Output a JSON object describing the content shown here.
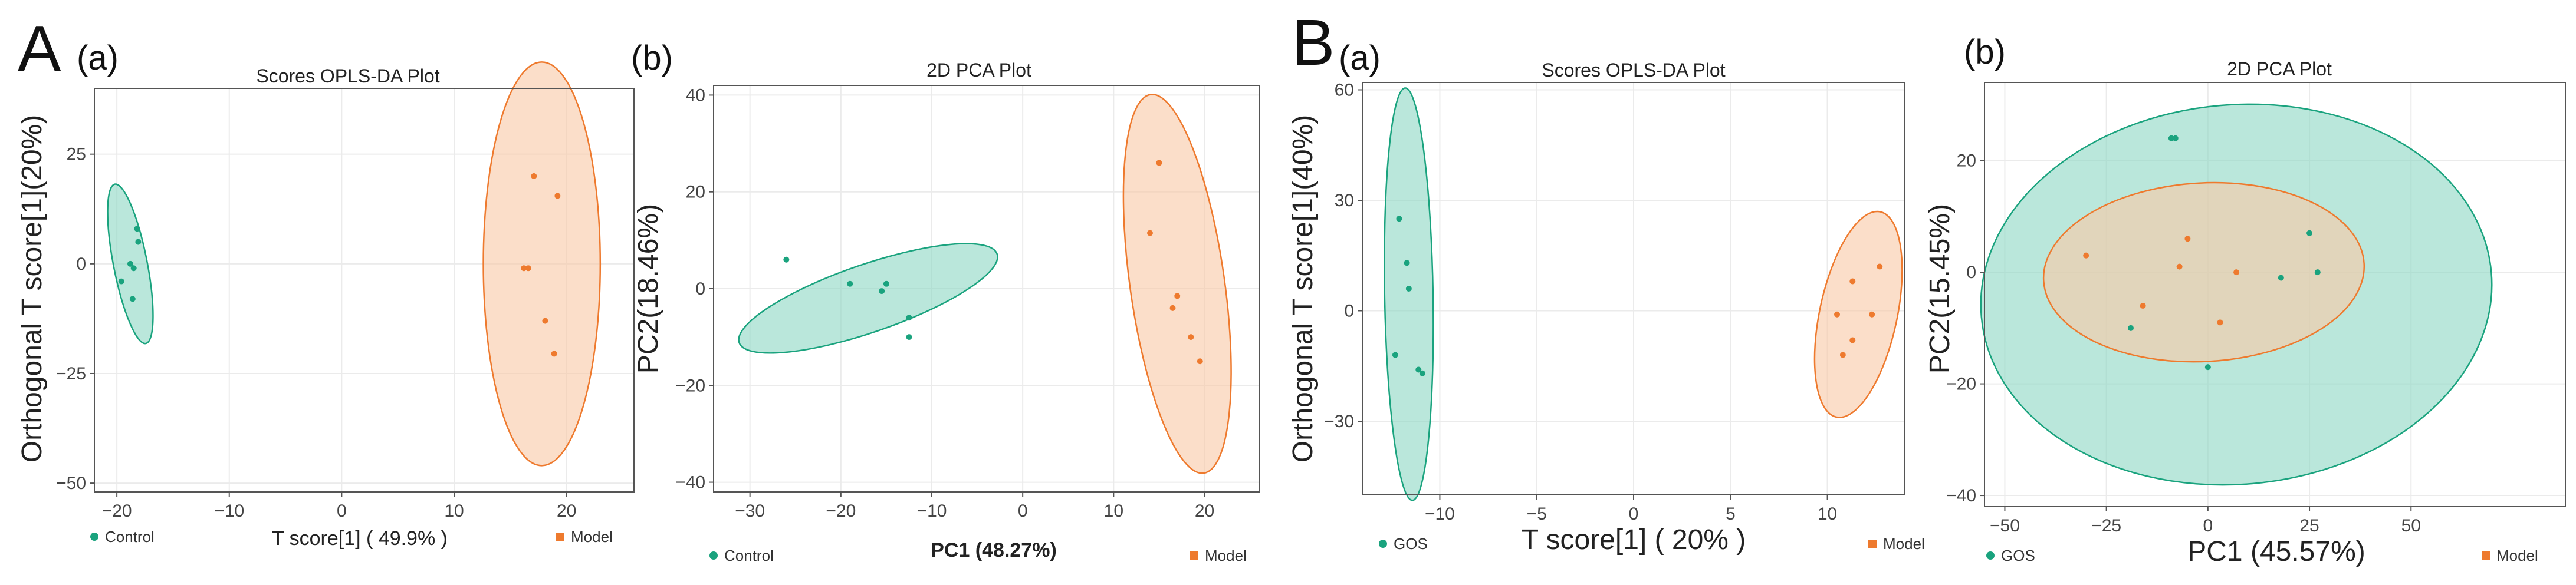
{
  "figure": {
    "labels": [
      {
        "text": "A"
      },
      {
        "text": "(a)"
      },
      {
        "text": "(b)"
      },
      {
        "text": "B"
      },
      {
        "text": "(a)"
      },
      {
        "text": "(b)"
      }
    ]
  },
  "colors": {
    "group1": "#1aa37e",
    "group1_fill": "#8fd9c5",
    "group2": "#ee7a2e",
    "group2_fill": "#f9c9a8"
  },
  "chart_data": [
    {
      "type": "scatter",
      "title": "Scores OPLS-DA Plot",
      "xlabel": "T score[1] ( 49.9% )",
      "ylabel": "Orthogonal T score[1](20%)",
      "xlim": [
        -22,
        26
      ],
      "ylim": [
        -52,
        40
      ],
      "xticks": [
        -20,
        -10,
        0,
        10,
        20
      ],
      "yticks": [
        -50,
        -25,
        0,
        25
      ],
      "xtick_labels": [
        "−20",
        "−10",
        "0",
        "10",
        "20"
      ],
      "ytick_labels": [
        "−50",
        "−25",
        "0",
        "25"
      ],
      "grid": true,
      "series": [
        {
          "name": "Control",
          "points": [
            [
              -18.2,
              8
            ],
            [
              -18.1,
              5
            ],
            [
              -18.8,
              0
            ],
            [
              -18.5,
              -1
            ],
            [
              -19.6,
              -4
            ],
            [
              -18.6,
              -8
            ]
          ],
          "ellipse": {
            "cx": -18.8,
            "cy": 0,
            "rx": 1.5,
            "ry": 18.5,
            "angle": -11
          }
        },
        {
          "name": "Model",
          "points": [
            [
              17.1,
              20
            ],
            [
              19.2,
              15.5
            ],
            [
              16.2,
              -1
            ],
            [
              16.6,
              -1
            ],
            [
              18.1,
              -13
            ],
            [
              18.9,
              -20.5
            ]
          ],
          "ellipse": {
            "cx": 17.8,
            "cy": 0,
            "rx": 5.2,
            "ry": 46,
            "angle": 0
          }
        }
      ]
    },
    {
      "type": "scatter",
      "title": "2D PCA Plot",
      "xlabel": "PC1 (48.27%)",
      "ylabel": "PC2(18.46%)",
      "xlim": [
        -34,
        26
      ],
      "ylim": [
        -42,
        42
      ],
      "xticks": [
        -30,
        -20,
        -10,
        0,
        10,
        20
      ],
      "yticks": [
        -40,
        -20,
        0,
        20,
        40
      ],
      "xtick_labels": [
        "−30",
        "−20",
        "−10",
        "0",
        "10",
        "20"
      ],
      "ytick_labels": [
        "−40",
        "−20",
        "0",
        "20",
        "40"
      ],
      "grid": true,
      "series": [
        {
          "name": "Control",
          "points": [
            [
              -26,
              6
            ],
            [
              -19,
              1
            ],
            [
              -15.5,
              -0.5
            ],
            [
              -15,
              1
            ],
            [
              -12.5,
              -6
            ],
            [
              -12.5,
              -10
            ]
          ],
          "ellipse": {
            "cx": -17,
            "cy": -2,
            "rx": 15,
            "ry": 7,
            "angle": -19
          }
        },
        {
          "name": "Model",
          "points": [
            [
              15,
              26
            ],
            [
              14,
              11.5
            ],
            [
              17,
              -1.5
            ],
            [
              16.5,
              -4
            ],
            [
              18.5,
              -10
            ],
            [
              19.5,
              -15
            ]
          ],
          "ellipse": {
            "cx": 17,
            "cy": 1,
            "rx": 5.2,
            "ry": 39.5,
            "angle": -8
          }
        }
      ]
    },
    {
      "type": "scatter",
      "title": "Scores OPLS-DA Plot",
      "xlabel": "T score[1] ( 20% )",
      "ylabel": "Orthogonal T score[1](40%)",
      "xlim": [
        -14,
        14
      ],
      "ylim": [
        -50,
        62
      ],
      "xticks": [
        -10,
        -5,
        0,
        5,
        10
      ],
      "yticks": [
        -30,
        0,
        30,
        60
      ],
      "xtick_labels": [
        "−10",
        "−5",
        "0",
        "5",
        "10"
      ],
      "ytick_labels": [
        "−30",
        "0",
        "30",
        "60"
      ],
      "grid": true,
      "series": [
        {
          "name": "GOS",
          "points": [
            [
              -12.1,
              25
            ],
            [
              -11.7,
              13
            ],
            [
              -11.6,
              6
            ],
            [
              -12.3,
              -12
            ],
            [
              -11.1,
              -16
            ],
            [
              -10.9,
              -17
            ]
          ],
          "ellipse": {
            "cx": -11.6,
            "cy": 4.5,
            "rx": 1.25,
            "ry": 56,
            "angle": -1
          }
        },
        {
          "name": "Model",
          "points": [
            [
              12.7,
              12
            ],
            [
              11.3,
              8
            ],
            [
              10.5,
              -1
            ],
            [
              12.3,
              -1
            ],
            [
              11.3,
              -8
            ],
            [
              10.8,
              -12
            ]
          ],
          "ellipse": {
            "cx": 11.6,
            "cy": -1,
            "rx": 2.0,
            "ry": 28.5,
            "angle": 12
          }
        }
      ]
    },
    {
      "type": "scatter",
      "title": "2D PCA Plot",
      "xlabel": "PC1 (45.57%)",
      "ylabel": "PC2(15.45%)",
      "xlim": [
        -55,
        88
      ],
      "ylim": [
        -42,
        34
      ],
      "xticks": [
        -50,
        -25,
        0,
        25,
        50
      ],
      "yticks": [
        -40,
        -20,
        0,
        20
      ],
      "xtick_labels": [
        "−50",
        "−25",
        "0",
        "25",
        "50"
      ],
      "ytick_labels": [
        "−40",
        "−20",
        "0",
        "20"
      ],
      "grid": true,
      "series": [
        {
          "name": "GOS",
          "points": [
            [
              -9,
              24
            ],
            [
              -8,
              24
            ],
            [
              25,
              7
            ],
            [
              27,
              0
            ],
            [
              18,
              -1
            ],
            [
              -19,
              -10
            ],
            [
              0,
              -17
            ]
          ],
          "ellipse": {
            "cx": 7,
            "cy": -4,
            "rx": 63,
            "ry": 34,
            "angle": -5
          }
        },
        {
          "name": "Model",
          "points": [
            [
              -30,
              3
            ],
            [
              -5,
              6
            ],
            [
              -7,
              1
            ],
            [
              7,
              0
            ],
            [
              -16,
              -6
            ],
            [
              3,
              -9
            ]
          ],
          "ellipse": {
            "cx": -1,
            "cy": 0,
            "rx": 39.5,
            "ry": 16,
            "angle": -3
          }
        }
      ]
    }
  ]
}
